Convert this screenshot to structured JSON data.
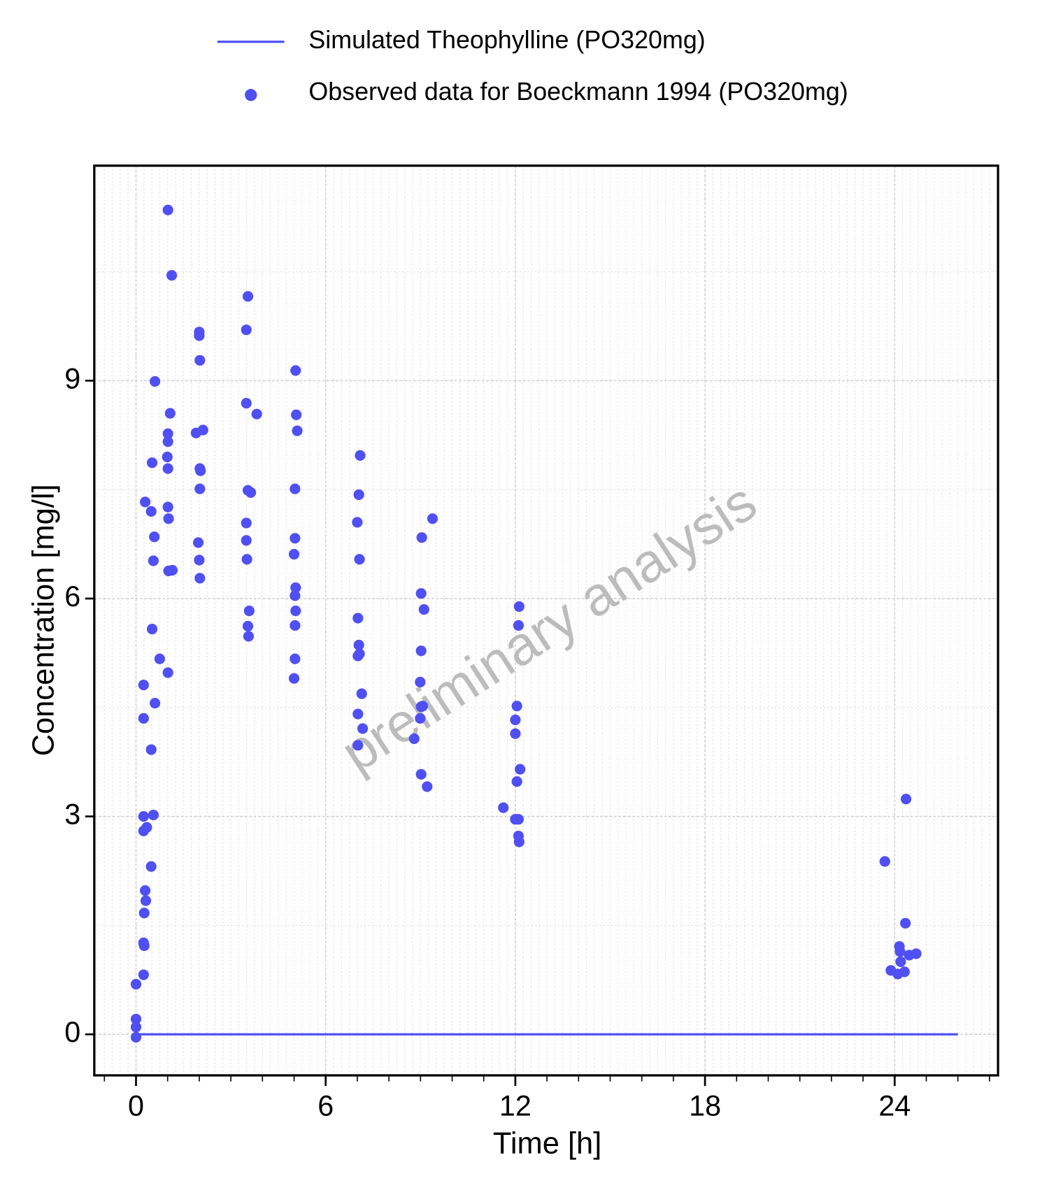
{
  "chart_data": {
    "type": "scatter",
    "xlabel": "Time [h]",
    "ylabel": "Concentration [mg/l]",
    "annotation": "preliminary analysis",
    "xlim": [
      -1.32,
      27.27
    ],
    "ylim": [
      -0.565,
      11.96
    ],
    "xticks": [
      0,
      6,
      12,
      18,
      24
    ],
    "yticks": [
      0,
      3,
      6,
      9
    ],
    "grid": true,
    "series": [
      {
        "name": "Simulated Theophylline (PO320mg)",
        "kind": "line",
        "color": "#5050f2",
        "x": [
          0,
          26
        ],
        "values": [
          0,
          0
        ]
      },
      {
        "name": "Observed data for Boeckmann 1994 (PO320mg)",
        "kind": "scatter",
        "color": "#5050f2",
        "x": [
          0,
          0,
          0,
          0,
          0.24,
          0.26,
          0.24,
          0.26,
          0.31,
          0.29,
          0.24,
          0.34,
          0.24,
          0.24,
          0.24,
          0.29,
          0.48,
          0.55,
          0.48,
          0.6,
          0.51,
          0.55,
          0.58,
          0.48,
          0.51,
          0.6,
          0.75,
          1.01,
          1.03,
          1.15,
          1.03,
          1.01,
          1.01,
          0.99,
          1.01,
          1.01,
          1.08,
          1.01,
          1.13,
          2.02,
          2.0,
          1.97,
          2.02,
          2.04,
          2.02,
          1.9,
          2.12,
          2.02,
          2.0,
          2.0,
          3.56,
          3.54,
          3.58,
          3.51,
          3.49,
          3.49,
          3.54,
          3.63,
          3.49,
          3.82,
          3.49,
          3.54,
          5.0,
          5.03,
          5.03,
          5.05,
          5.03,
          5.05,
          5.0,
          5.03,
          5.03,
          5.1,
          5.07,
          5.05,
          7.02,
          7.17,
          7.02,
          7.14,
          7.02,
          7.07,
          7.05,
          7.02,
          7.07,
          7.0,
          7.05,
          7.09,
          8.8,
          9.21,
          9.02,
          8.99,
          9.02,
          9.07,
          8.99,
          9.02,
          9.11,
          9.02,
          9.04,
          9.38,
          11.62,
          12.1,
          12.0,
          12.1,
          12.12,
          12.05,
          12.15,
          12.0,
          12.0,
          12.05,
          12.1,
          12.12,
          23.69,
          23.88,
          24.1,
          24.31,
          24.19,
          24.17,
          24.15,
          24.46,
          24.68,
          24.34,
          24.36
        ],
        "values": [
          -0.04,
          0.1,
          0.21,
          0.69,
          0.82,
          1.22,
          1.26,
          1.67,
          1.84,
          1.98,
          2.8,
          2.85,
          3.0,
          4.35,
          4.81,
          7.33,
          2.31,
          3.02,
          3.92,
          4.56,
          5.58,
          6.52,
          6.85,
          7.2,
          7.87,
          8.99,
          5.17,
          4.98,
          6.38,
          6.39,
          7.1,
          7.26,
          7.79,
          7.95,
          8.16,
          8.27,
          8.55,
          11.35,
          10.45,
          6.28,
          6.53,
          6.77,
          7.51,
          7.76,
          7.79,
          8.28,
          8.32,
          9.28,
          9.62,
          9.67,
          5.48,
          5.62,
          5.83,
          6.54,
          6.8,
          7.04,
          7.49,
          7.46,
          8.69,
          8.54,
          9.7,
          10.16,
          4.9,
          5.17,
          5.63,
          5.83,
          6.04,
          6.15,
          6.61,
          6.83,
          7.51,
          8.31,
          8.53,
          9.14,
          3.98,
          4.21,
          4.41,
          4.69,
          5.21,
          5.24,
          5.36,
          5.73,
          6.54,
          7.05,
          7.43,
          7.97,
          4.07,
          3.41,
          3.58,
          4.35,
          4.51,
          4.52,
          4.85,
          5.28,
          5.85,
          6.07,
          6.84,
          7.1,
          3.12,
          2.96,
          2.96,
          2.73,
          2.65,
          3.48,
          3.65,
          4.14,
          4.33,
          4.52,
          5.63,
          5.89,
          2.38,
          0.88,
          0.83,
          0.86,
          1.0,
          1.14,
          1.21,
          1.09,
          1.11,
          1.53,
          3.24
        ]
      }
    ]
  }
}
